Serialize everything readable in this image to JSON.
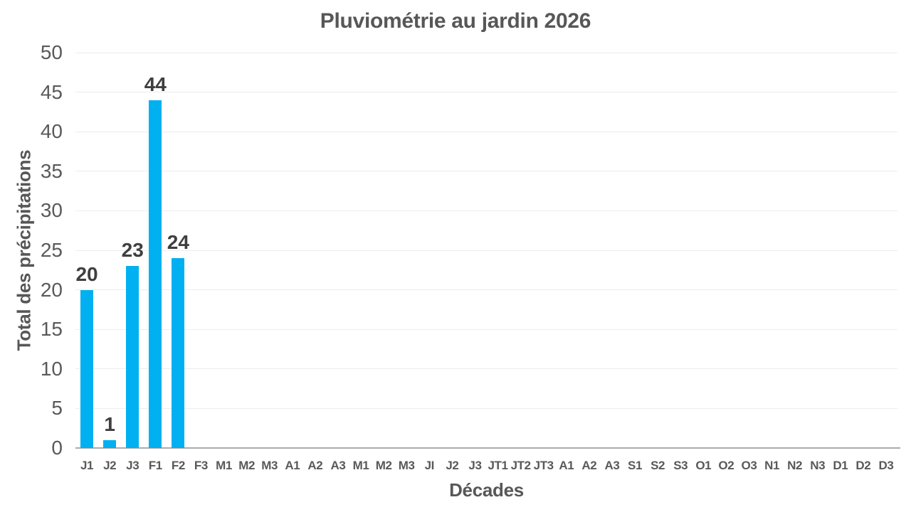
{
  "chart_data": {
    "type": "bar",
    "title": "Pluviométrie au jardin 2026",
    "xlabel": "Décades",
    "ylabel": "Total des précipitations",
    "categories": [
      "J1",
      "J2",
      "J3",
      "F1",
      "F2",
      "F3",
      "M1",
      "M2",
      "M3",
      "A1",
      "A2",
      "A3",
      "M1",
      "M2",
      "M3",
      "JI",
      "J2",
      "J3",
      "JT1",
      "JT2",
      "JT3",
      "A1",
      "A2",
      "A3",
      "S1",
      "S2",
      "S3",
      "O1",
      "O2",
      "O3",
      "N1",
      "N2",
      "N3",
      "D1",
      "D2",
      "D3"
    ],
    "values": [
      20,
      1,
      23,
      44,
      24,
      null,
      null,
      null,
      null,
      null,
      null,
      null,
      null,
      null,
      null,
      null,
      null,
      null,
      null,
      null,
      null,
      null,
      null,
      null,
      null,
      null,
      null,
      null,
      null,
      null,
      null,
      null,
      null,
      null,
      null,
      null
    ],
    "data_labels": [
      20,
      1,
      23,
      44,
      24
    ],
    "ylim": [
      0,
      50
    ],
    "ytick_step": 5,
    "grid": "horizontal",
    "legend": "none",
    "colors": {
      "bar": "#00B0F0",
      "gridline": "#ededed",
      "axis_line": "#ababab",
      "tick_text": "#595959",
      "title_text": "#575757",
      "data_label_text": "#3f3f3f",
      "background": "#ffffff"
    }
  }
}
